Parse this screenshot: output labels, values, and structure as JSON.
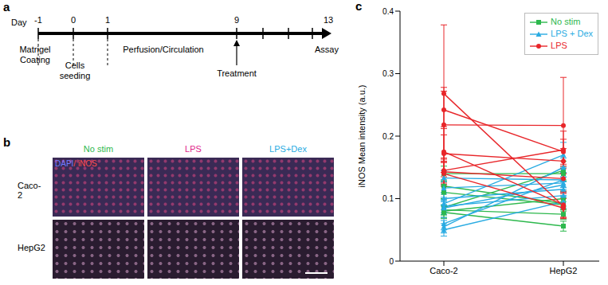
{
  "panel_labels": [
    "a",
    "b",
    "c"
  ],
  "timeline": {
    "axis_label": "Day",
    "ticks": [
      "-1",
      "0",
      "1",
      "9",
      null,
      null,
      null,
      "13"
    ],
    "events": [
      "Matrigel Coating",
      "Cells seeding",
      "Perfusion/Circulation",
      "Treatment",
      "Assay"
    ]
  },
  "images": {
    "stain_labels": [
      {
        "text": "DAPI",
        "color": "#6f7dff"
      },
      {
        "text": "/ iNOS",
        "color": "#ff4a4a"
      }
    ],
    "columns": [
      {
        "text": "No stim",
        "color": "#2db84d"
      },
      {
        "text": "LPS",
        "color": "#e0268a"
      },
      {
        "text": "LPS+Dex",
        "color": "#29abe2"
      }
    ],
    "rows": [
      "Caco-2",
      "HepG2"
    ]
  },
  "chart_data": {
    "type": "line",
    "categories": [
      "Caco-2",
      "HepG2"
    ],
    "y_label": "iNOS Mean intensity (a.u.)",
    "ylim": [
      0,
      0.4
    ],
    "yticks": [
      0,
      0.1,
      0.2,
      0.3,
      0.4
    ],
    "legend": "upper right",
    "series": [
      {
        "name": "No stim",
        "color": "#2db84d",
        "marker": "square",
        "lines": [
          {
            "values": [
              0.14,
              0.14
            ],
            "errors": [
              0.012,
              0.012
            ]
          },
          {
            "values": [
              0.12,
              0.092
            ],
            "errors": [
              0.01,
              0.01
            ]
          },
          {
            "values": [
              0.08,
              0.1
            ],
            "errors": [
              0.01,
              0.012
            ]
          },
          {
            "values": [
              0.082,
              0.075
            ],
            "errors": [
              0.008,
              0.008
            ]
          },
          {
            "values": [
              0.078,
              0.056
            ],
            "errors": [
              0.01,
              0.008
            ]
          },
          {
            "values": [
              0.086,
              0.145
            ],
            "errors": [
              0.012,
              0.015
            ]
          },
          {
            "values": [
              0.11,
              0.09
            ],
            "errors": [
              0.01,
              0.01
            ]
          }
        ]
      },
      {
        "name": "LPS + Dex",
        "color": "#29abe2",
        "marker": "triangle",
        "lines": [
          {
            "values": [
              0.133,
              0.13
            ],
            "errors": [
              0.012,
              0.012
            ]
          },
          {
            "values": [
              0.117,
              0.125
            ],
            "errors": [
              0.01,
              0.015
            ]
          },
          {
            "values": [
              0.1,
              0.115
            ],
            "errors": [
              0.01,
              0.012
            ]
          },
          {
            "values": [
              0.092,
              0.17
            ],
            "errors": [
              0.01,
              0.02
            ]
          },
          {
            "values": [
              0.088,
              0.105
            ],
            "errors": [
              0.01,
              0.01
            ]
          },
          {
            "values": [
              0.085,
              0.122
            ],
            "errors": [
              0.01,
              0.012
            ]
          },
          {
            "values": [
              0.06,
              0.13
            ],
            "errors": [
              0.01,
              0.012
            ]
          },
          {
            "values": [
              0.055,
              0.15
            ],
            "errors": [
              0.01,
              0.015
            ]
          },
          {
            "values": [
              0.05,
              0.095
            ],
            "errors": [
              0.01,
              0.01
            ]
          }
        ]
      },
      {
        "name": "LPS",
        "color": "#e8262a",
        "marker": "circle",
        "lines": [
          {
            "values": [
              0.268,
              0.088
            ],
            "errors": [
              0.11,
              0.02
            ]
          },
          {
            "values": [
              0.242,
              0.175
            ],
            "errors": [
              0.03,
              0.02
            ]
          },
          {
            "values": [
              0.218,
              0.217
            ],
            "errors": [
              0.06,
              0.077
            ]
          },
          {
            "values": [
              0.175,
              0.09
            ],
            "errors": [
              0.04,
              0.02
            ]
          },
          {
            "values": [
              0.172,
              0.16
            ],
            "errors": [
              0.03,
              0.02
            ]
          },
          {
            "values": [
              0.145,
              0.178
            ],
            "errors": [
              0.02,
              0.03
            ]
          },
          {
            "values": [
              0.143,
              0.132
            ],
            "errors": [
              0.02,
              0.02
            ]
          },
          {
            "values": [
              0.14,
              0.085
            ],
            "errors": [
              0.02,
              0.015
            ]
          }
        ]
      }
    ]
  }
}
